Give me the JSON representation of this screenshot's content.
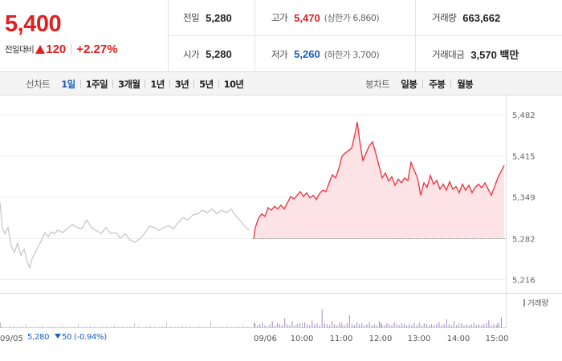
{
  "quote": {
    "price": "5,400",
    "change_label": "전일대비",
    "change_value": "120",
    "change_percent": "+2.27%",
    "direction_icon": "triangle-up-icon",
    "prev_close_label": "전일",
    "prev_close": "5,280",
    "open_label": "시가",
    "open": "5,280",
    "high_label": "고가",
    "high": "5,470",
    "upper_limit": "(상한가 6,860)",
    "low_label": "저가",
    "low": "5,260",
    "lower_limit": "(하한가 3,700)",
    "volume_label": "거래량",
    "volume": "663,662",
    "amount_label": "거래대금",
    "amount": "3,570 백만"
  },
  "period_tabs": {
    "title": "선차트",
    "items": [
      "1일",
      "1주일",
      "3개월",
      "1년",
      "3년",
      "5년",
      "10년"
    ],
    "active": "1일"
  },
  "candle_tabs": {
    "title": "봉차트",
    "items": [
      "일봉",
      "주봉",
      "월봉"
    ]
  },
  "chart_data": {
    "type": "line",
    "title": "",
    "y_ticks": [
      "5,482",
      "5,415",
      "5,349",
      "5,282",
      "5,216"
    ],
    "ylim": [
      5196,
      5500
    ],
    "reference_line": 5282,
    "x_ticks": [
      "09/05",
      "09/06",
      "10:00",
      "11:00",
      "12:00",
      "13:00",
      "14:00",
      "15:00"
    ],
    "volume_legend": "거래량",
    "previous_day": {
      "date": "09/05",
      "close": "5,280",
      "change": "50",
      "change_percent": "(-0.94%)",
      "series": [
        {
          "x": 0,
          "y": 5340
        },
        {
          "x": 3,
          "y": 5300
        },
        {
          "x": 6,
          "y": 5290
        },
        {
          "x": 10,
          "y": 5300
        },
        {
          "x": 14,
          "y": 5270
        },
        {
          "x": 18,
          "y": 5260
        },
        {
          "x": 22,
          "y": 5275
        },
        {
          "x": 26,
          "y": 5255
        },
        {
          "x": 30,
          "y": 5265
        },
        {
          "x": 34,
          "y": 5245
        },
        {
          "x": 37,
          "y": 5235
        },
        {
          "x": 40,
          "y": 5250
        },
        {
          "x": 44,
          "y": 5260
        },
        {
          "x": 48,
          "y": 5270
        },
        {
          "x": 52,
          "y": 5280
        },
        {
          "x": 56,
          "y": 5292
        },
        {
          "x": 60,
          "y": 5285
        },
        {
          "x": 64,
          "y": 5293
        },
        {
          "x": 68,
          "y": 5290
        },
        {
          "x": 72,
          "y": 5296
        },
        {
          "x": 78,
          "y": 5292
        },
        {
          "x": 84,
          "y": 5298
        },
        {
          "x": 90,
          "y": 5305
        },
        {
          "x": 96,
          "y": 5300
        },
        {
          "x": 102,
          "y": 5298
        },
        {
          "x": 108,
          "y": 5312
        },
        {
          "x": 114,
          "y": 5300
        },
        {
          "x": 120,
          "y": 5295
        },
        {
          "x": 126,
          "y": 5290
        },
        {
          "x": 132,
          "y": 5300
        },
        {
          "x": 138,
          "y": 5290
        },
        {
          "x": 144,
          "y": 5292
        },
        {
          "x": 150,
          "y": 5283
        },
        {
          "x": 156,
          "y": 5290
        },
        {
          "x": 162,
          "y": 5280
        },
        {
          "x": 168,
          "y": 5276
        },
        {
          "x": 174,
          "y": 5282
        },
        {
          "x": 180,
          "y": 5290
        },
        {
          "x": 186,
          "y": 5302
        },
        {
          "x": 192,
          "y": 5300
        },
        {
          "x": 198,
          "y": 5295
        },
        {
          "x": 204,
          "y": 5300
        },
        {
          "x": 210,
          "y": 5303
        },
        {
          "x": 216,
          "y": 5298
        },
        {
          "x": 222,
          "y": 5308
        },
        {
          "x": 228,
          "y": 5316
        },
        {
          "x": 234,
          "y": 5312
        },
        {
          "x": 240,
          "y": 5320
        },
        {
          "x": 246,
          "y": 5322
        },
        {
          "x": 252,
          "y": 5328
        },
        {
          "x": 258,
          "y": 5324
        },
        {
          "x": 264,
          "y": 5330
        },
        {
          "x": 270,
          "y": 5322
        },
        {
          "x": 276,
          "y": 5328
        },
        {
          "x": 282,
          "y": 5324
        },
        {
          "x": 288,
          "y": 5330
        },
        {
          "x": 294,
          "y": 5318
        },
        {
          "x": 300,
          "y": 5310
        },
        {
          "x": 306,
          "y": 5300
        },
        {
          "x": 311,
          "y": 5296
        }
      ]
    },
    "current_day": {
      "date": "09/06",
      "series": [
        {
          "x": 316,
          "y": 5282
        },
        {
          "x": 318,
          "y": 5300
        },
        {
          "x": 322,
          "y": 5315
        },
        {
          "x": 326,
          "y": 5322
        },
        {
          "x": 330,
          "y": 5318
        },
        {
          "x": 334,
          "y": 5332
        },
        {
          "x": 338,
          "y": 5328
        },
        {
          "x": 342,
          "y": 5334
        },
        {
          "x": 346,
          "y": 5330
        },
        {
          "x": 350,
          "y": 5336
        },
        {
          "x": 354,
          "y": 5330
        },
        {
          "x": 358,
          "y": 5340
        },
        {
          "x": 362,
          "y": 5350
        },
        {
          "x": 366,
          "y": 5346
        },
        {
          "x": 370,
          "y": 5352
        },
        {
          "x": 374,
          "y": 5358
        },
        {
          "x": 378,
          "y": 5350
        },
        {
          "x": 382,
          "y": 5356
        },
        {
          "x": 386,
          "y": 5348
        },
        {
          "x": 390,
          "y": 5352
        },
        {
          "x": 394,
          "y": 5345
        },
        {
          "x": 398,
          "y": 5355
        },
        {
          "x": 402,
          "y": 5360
        },
        {
          "x": 406,
          "y": 5358
        },
        {
          "x": 410,
          "y": 5372
        },
        {
          "x": 414,
          "y": 5385
        },
        {
          "x": 418,
          "y": 5380
        },
        {
          "x": 422,
          "y": 5395
        },
        {
          "x": 426,
          "y": 5415
        },
        {
          "x": 430,
          "y": 5420
        },
        {
          "x": 434,
          "y": 5424
        },
        {
          "x": 438,
          "y": 5428
        },
        {
          "x": 442,
          "y": 5450
        },
        {
          "x": 445,
          "y": 5470
        },
        {
          "x": 448,
          "y": 5440
        },
        {
          "x": 452,
          "y": 5408
        },
        {
          "x": 456,
          "y": 5420
        },
        {
          "x": 460,
          "y": 5432
        },
        {
          "x": 464,
          "y": 5438
        },
        {
          "x": 468,
          "y": 5420
        },
        {
          "x": 472,
          "y": 5400
        },
        {
          "x": 476,
          "y": 5380
        },
        {
          "x": 480,
          "y": 5388
        },
        {
          "x": 484,
          "y": 5375
        },
        {
          "x": 488,
          "y": 5382
        },
        {
          "x": 492,
          "y": 5368
        },
        {
          "x": 496,
          "y": 5378
        },
        {
          "x": 500,
          "y": 5372
        },
        {
          "x": 504,
          "y": 5380
        },
        {
          "x": 508,
          "y": 5376
        },
        {
          "x": 512,
          "y": 5405
        },
        {
          "x": 516,
          "y": 5392
        },
        {
          "x": 520,
          "y": 5380
        },
        {
          "x": 524,
          "y": 5352
        },
        {
          "x": 528,
          "y": 5372
        },
        {
          "x": 532,
          "y": 5365
        },
        {
          "x": 536,
          "y": 5384
        },
        {
          "x": 540,
          "y": 5370
        },
        {
          "x": 544,
          "y": 5376
        },
        {
          "x": 548,
          "y": 5362
        },
        {
          "x": 552,
          "y": 5370
        },
        {
          "x": 556,
          "y": 5360
        },
        {
          "x": 560,
          "y": 5374
        },
        {
          "x": 564,
          "y": 5362
        },
        {
          "x": 568,
          "y": 5366
        },
        {
          "x": 572,
          "y": 5356
        },
        {
          "x": 576,
          "y": 5370
        },
        {
          "x": 580,
          "y": 5360
        },
        {
          "x": 584,
          "y": 5368
        },
        {
          "x": 588,
          "y": 5356
        },
        {
          "x": 592,
          "y": 5365
        },
        {
          "x": 596,
          "y": 5370
        },
        {
          "x": 600,
          "y": 5364
        },
        {
          "x": 604,
          "y": 5372
        },
        {
          "x": 608,
          "y": 5362
        },
        {
          "x": 612,
          "y": 5352
        },
        {
          "x": 616,
          "y": 5366
        },
        {
          "x": 620,
          "y": 5380
        },
        {
          "x": 624,
          "y": 5390
        },
        {
          "x": 628,
          "y": 5400
        }
      ]
    },
    "volume": {
      "prev_day": [
        1,
        0,
        2,
        1,
        0,
        1,
        3,
        1,
        0,
        1,
        2,
        0,
        1,
        1,
        0,
        2,
        1,
        0,
        1,
        3,
        0,
        1,
        2,
        1,
        0,
        1,
        1,
        0,
        2,
        1,
        1,
        0,
        1,
        4,
        1,
        0,
        1,
        2,
        1,
        0,
        1,
        5,
        1,
        0,
        1,
        2,
        1,
        1,
        0,
        2,
        1,
        0,
        6,
        1,
        0,
        1,
        2,
        1,
        0,
        1,
        3,
        1
      ],
      "current_day": [
        4,
        2,
        3,
        5,
        2,
        1,
        3,
        6,
        2,
        4,
        3,
        2,
        9,
        3,
        2,
        6,
        2,
        3,
        4,
        2,
        5,
        3,
        2,
        7,
        3,
        4,
        2,
        18,
        4,
        3,
        2,
        6,
        3,
        2,
        5,
        3,
        2,
        4,
        12,
        3,
        2,
        5,
        3,
        4,
        2,
        3,
        5,
        2,
        3,
        2,
        6,
        3,
        2,
        4,
        3,
        2,
        5,
        3,
        2,
        4,
        3,
        2,
        3,
        2,
        4,
        2,
        3,
        2,
        4,
        3,
        2,
        3,
        2,
        3,
        5,
        2,
        3,
        8,
        3,
        2,
        6,
        2,
        3,
        4,
        2,
        3,
        2,
        3,
        4,
        2,
        3,
        2,
        3,
        4,
        7,
        2,
        3,
        2,
        4,
        10
      ]
    }
  },
  "colors": {
    "up": "#e01f1f",
    "down": "#1a5fbd",
    "line_today": "#e8313b",
    "fill_today": "#fde3e5",
    "line_prev": "#c8c8c8",
    "volume_bar": "#9b86c4"
  }
}
